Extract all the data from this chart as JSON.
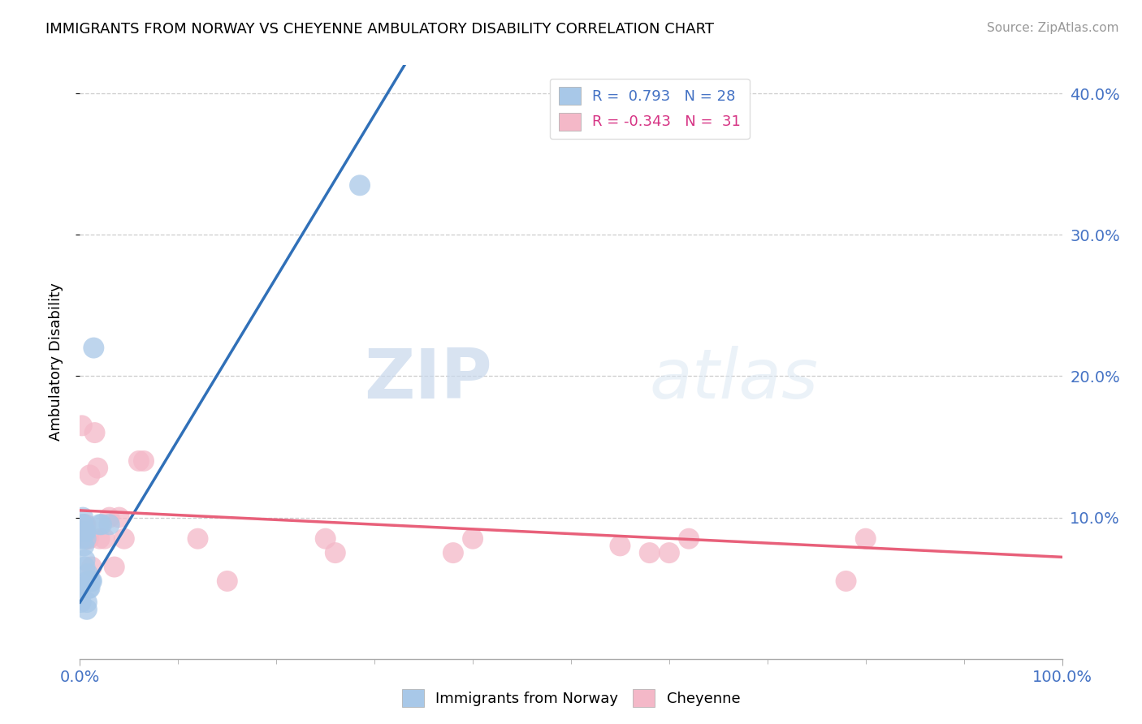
{
  "title": "IMMIGRANTS FROM NORWAY VS CHEYENNE AMBULATORY DISABILITY CORRELATION CHART",
  "source": "Source: ZipAtlas.com",
  "ylabel": "Ambulatory Disability",
  "xlabel": "",
  "blue_R": 0.793,
  "blue_N": 28,
  "pink_R": -0.343,
  "pink_N": 31,
  "blue_color": "#a8c8e8",
  "pink_color": "#f4b8c8",
  "blue_line_color": "#3070b8",
  "pink_line_color": "#e8607a",
  "xlim": [
    0.0,
    1.0
  ],
  "ylim": [
    0.0,
    0.42
  ],
  "yticks": [
    0.1,
    0.2,
    0.3,
    0.4
  ],
  "xtick_positions": [
    0.0,
    1.0
  ],
  "xtick_labels": [
    "0.0%",
    "100.0%"
  ],
  "watermark_zip": "ZIP",
  "watermark_atlas": "atlas",
  "blue_x": [
    0.001,
    0.001,
    0.002,
    0.002,
    0.003,
    0.003,
    0.003,
    0.004,
    0.004,
    0.005,
    0.005,
    0.005,
    0.006,
    0.006,
    0.007,
    0.007,
    0.008,
    0.008,
    0.009,
    0.01,
    0.01,
    0.011,
    0.012,
    0.014,
    0.02,
    0.022,
    0.03,
    0.285
  ],
  "blue_y": [
    0.04,
    0.05,
    0.085,
    0.09,
    0.095,
    0.095,
    0.1,
    0.08,
    0.09,
    0.065,
    0.07,
    0.09,
    0.085,
    0.09,
    0.035,
    0.04,
    0.055,
    0.06,
    0.05,
    0.05,
    0.055,
    0.055,
    0.055,
    0.22,
    0.095,
    0.095,
    0.095,
    0.335
  ],
  "pink_x": [
    0.002,
    0.004,
    0.005,
    0.006,
    0.007,
    0.008,
    0.009,
    0.01,
    0.012,
    0.015,
    0.018,
    0.02,
    0.025,
    0.03,
    0.035,
    0.04,
    0.045,
    0.06,
    0.065,
    0.12,
    0.15,
    0.25,
    0.26,
    0.38,
    0.4,
    0.55,
    0.58,
    0.6,
    0.62,
    0.78,
    0.8
  ],
  "pink_y": [
    0.165,
    0.095,
    0.095,
    0.095,
    0.085,
    0.085,
    0.085,
    0.13,
    0.065,
    0.16,
    0.135,
    0.085,
    0.085,
    0.1,
    0.065,
    0.1,
    0.085,
    0.14,
    0.14,
    0.085,
    0.055,
    0.085,
    0.075,
    0.075,
    0.085,
    0.08,
    0.075,
    0.075,
    0.085,
    0.055,
    0.085
  ],
  "blue_line_x": [
    0.0,
    0.4
  ],
  "blue_line_y": [
    0.04,
    0.5
  ],
  "pink_line_x": [
    0.0,
    1.0
  ],
  "pink_line_y": [
    0.105,
    0.072
  ],
  "legend_upper_right": true,
  "grid_color": "#cccccc",
  "grid_linestyle": "--"
}
